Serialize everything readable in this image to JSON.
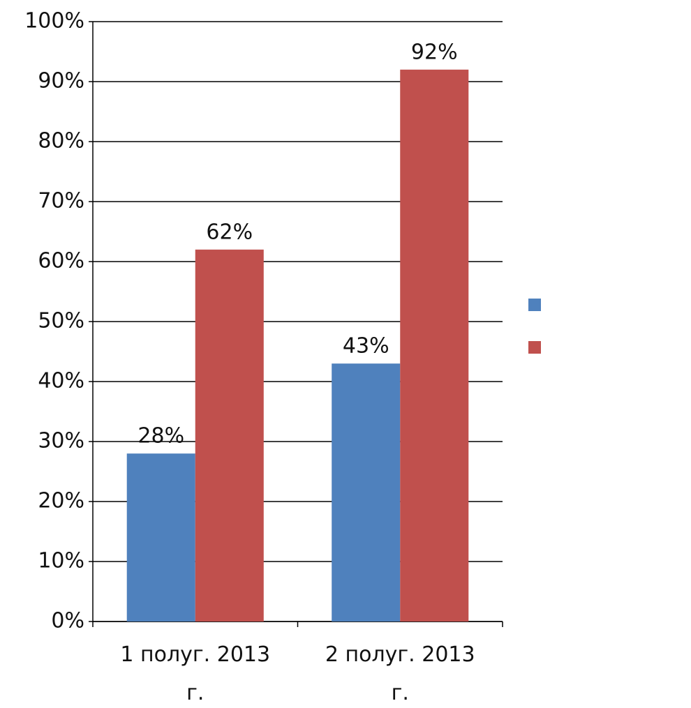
{
  "chart_data": {
    "type": "bar",
    "categories": [
      "1 полуг. 2013 г.",
      "2 полуг. 2013 г."
    ],
    "series": [
      {
        "color": "#4f81bd",
        "values": [
          28,
          43
        ],
        "value_labels": [
          "28%",
          "43%"
        ]
      },
      {
        "color": "#c0504d",
        "values": [
          62,
          92
        ],
        "value_labels": [
          "62%",
          "92%"
        ]
      }
    ],
    "ylim": [
      0,
      100
    ],
    "yticks": [
      {
        "value": 0,
        "label": "0%"
      },
      {
        "value": 10,
        "label": "10%"
      },
      {
        "value": 20,
        "label": "20%"
      },
      {
        "value": 30,
        "label": "30%"
      },
      {
        "value": 40,
        "label": "40%"
      },
      {
        "value": 50,
        "label": "50%"
      },
      {
        "value": 60,
        "label": "60%"
      },
      {
        "value": 70,
        "label": "70%"
      },
      {
        "value": 80,
        "label": "80%"
      },
      {
        "value": 90,
        "label": "90%"
      },
      {
        "value": 100,
        "label": "100%"
      }
    ],
    "grid": true,
    "legend": "right"
  }
}
